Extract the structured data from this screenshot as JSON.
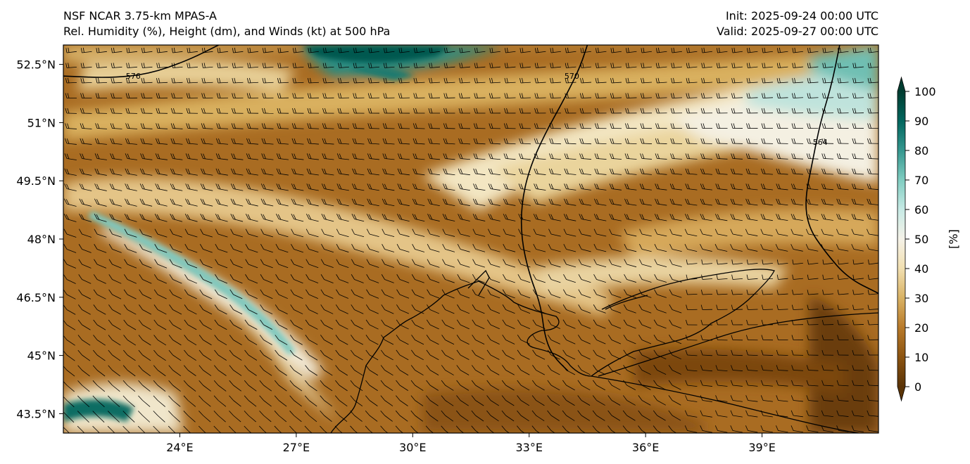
{
  "header": {
    "model": "NSF NCAR 3.75-km MPAS-A",
    "fields": "Rel. Humidity (%), Height (dm), and Winds (kt) at 500 hPa",
    "init": "Init: 2025-09-24 00:00 UTC",
    "valid": "Valid: 2025-09-27 00:00 UTC"
  },
  "map": {
    "lon_range": [
      21,
      42
    ],
    "lat_range": [
      43,
      53
    ],
    "lon_ticks": [
      {
        "value": 24,
        "label": "24°E"
      },
      {
        "value": 27,
        "label": "27°E"
      },
      {
        "value": 30,
        "label": "30°E"
      },
      {
        "value": 33,
        "label": "33°E"
      },
      {
        "value": 36,
        "label": "36°E"
      },
      {
        "value": 39,
        "label": "39°E"
      }
    ],
    "lat_ticks": [
      {
        "value": 52.5,
        "label": "52.5°N"
      },
      {
        "value": 51,
        "label": "51°N"
      },
      {
        "value": 49.5,
        "label": "49.5°N"
      },
      {
        "value": 48,
        "label": "48°N"
      },
      {
        "value": 46.5,
        "label": "46.5°N"
      },
      {
        "value": 45,
        "label": "45°N"
      },
      {
        "value": 43.5,
        "label": "43.5°N"
      }
    ],
    "height_contours": [
      {
        "label": "576",
        "label_lon": 22.8,
        "label_lat": 52.2,
        "points": [
          [
            21,
            52.2
          ],
          [
            22.2,
            52.15
          ],
          [
            23.2,
            52.25
          ],
          [
            24.2,
            52.6
          ],
          [
            25.0,
            53
          ]
        ]
      },
      {
        "label": "570",
        "label_lon": 34.1,
        "label_lat": 52.2,
        "points": [
          [
            34.5,
            53
          ],
          [
            34.3,
            52.4
          ],
          [
            33.9,
            51.6
          ],
          [
            33.4,
            50.7
          ],
          [
            33.0,
            49.8
          ],
          [
            32.8,
            48.9
          ],
          [
            32.8,
            48.0
          ],
          [
            33.0,
            47.1
          ],
          [
            33.3,
            46.3
          ],
          [
            33.4,
            45.5
          ],
          [
            33.6,
            45.0
          ],
          [
            34.0,
            44.6
          ]
        ]
      },
      {
        "label": "564",
        "label_lon": 40.5,
        "label_lat": 50.5,
        "points": [
          [
            41.0,
            53
          ],
          [
            40.8,
            52.0
          ],
          [
            40.5,
            51.0
          ],
          [
            40.3,
            50.0
          ],
          [
            40.1,
            49.0
          ],
          [
            40.2,
            48.3
          ],
          [
            40.6,
            47.7
          ],
          [
            41.2,
            47.0
          ],
          [
            42,
            46.6
          ]
        ]
      }
    ],
    "colorbar": {
      "min": 0,
      "max": 100,
      "ticks": [
        "0",
        "10",
        "20",
        "30",
        "40",
        "50",
        "60",
        "70",
        "80",
        "90",
        "100"
      ],
      "unit_label": "[%]",
      "colors": [
        "#5a3306",
        "#8c5411",
        "#b87a2a",
        "#d9b264",
        "#f1dfb0",
        "#f5f2e8",
        "#c7eae5",
        "#80cdc1",
        "#35978f",
        "#01665e",
        "#003c30"
      ]
    },
    "colors": {
      "dry": "#9a621b",
      "moist": "#01665e",
      "coast": "#000000",
      "barb": "#000000"
    }
  }
}
